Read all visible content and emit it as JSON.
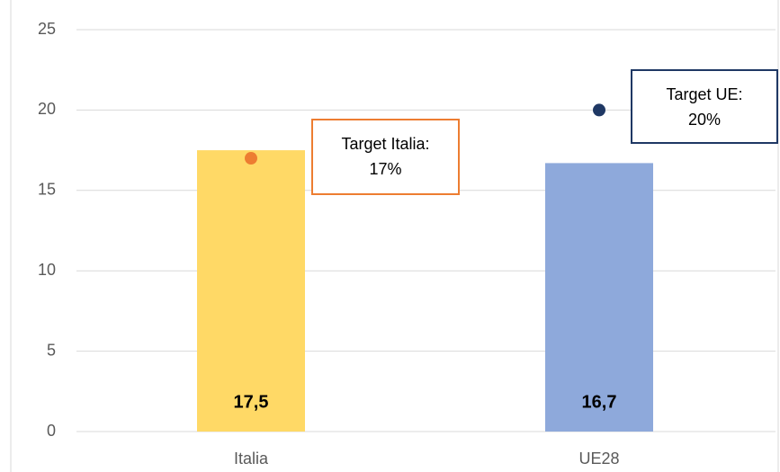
{
  "chart_data": {
    "type": "bar",
    "categories": [
      "Italia",
      "UE28"
    ],
    "values": [
      17.5,
      16.7
    ],
    "value_labels": [
      "17,5",
      "16,7"
    ],
    "colors": [
      "#FFD966",
      "#8EA9DB"
    ],
    "ylim": [
      0,
      25
    ],
    "yticks": [
      0,
      5,
      10,
      15,
      20,
      25
    ],
    "grid": true,
    "targets": [
      {
        "label": "Target Italia:",
        "value": 17,
        "value_label": "17%",
        "color": "#ED7D31"
      },
      {
        "label": "Target UE:",
        "value": 20,
        "value_label": "20%",
        "color": "#1F3864"
      }
    ]
  }
}
